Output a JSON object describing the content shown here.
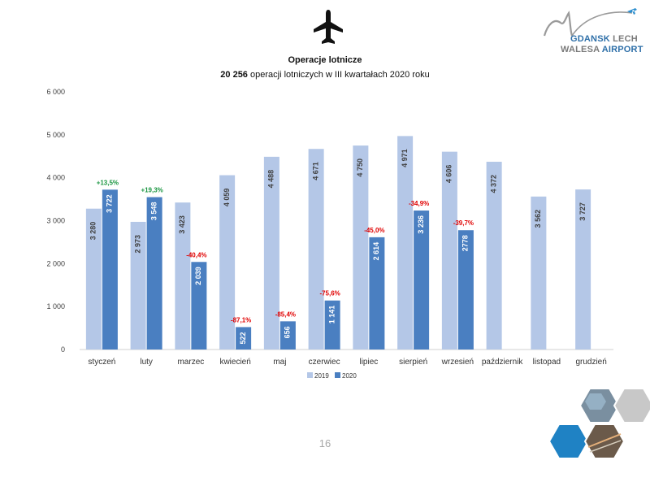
{
  "slide": {
    "title": "Operacje lotnicze",
    "subtitle_count": "20 256",
    "subtitle_rest": "operacji lotniczych w III kwartałach 2020 roku",
    "page_number": "16",
    "icons": [
      "airplane-icon",
      "airport-logo",
      "hexagon-photo-collage"
    ]
  },
  "logo": {
    "line1_a": "GDANSK",
    "line1_b": "LECH",
    "line2_a": "WALESA",
    "line2_b": "AIRPORT"
  },
  "chart_data": {
    "type": "bar",
    "categories": [
      "styczeń",
      "luty",
      "marzec",
      "kwiecień",
      "maj",
      "czerwiec",
      "lipiec",
      "sierpień",
      "wrzesień",
      "październik",
      "listopad",
      "grudzień"
    ],
    "series": [
      {
        "name": "2019",
        "color": "#b4c7e7",
        "values": [
          3280,
          2973,
          3423,
          4059,
          4488,
          4671,
          4750,
          4971,
          4606,
          4372,
          3562,
          3727
        ],
        "labels": [
          "3 280",
          "2 973",
          "3 423",
          "4 059",
          "4 488",
          "4 671",
          "4 750",
          "4 971",
          "4 606",
          "4 372",
          "3 562",
          "3 727"
        ]
      },
      {
        "name": "2020",
        "color": "#4a7fc1",
        "values": [
          3722,
          3548,
          2039,
          522,
          656,
          1141,
          2614,
          3236,
          2778,
          null,
          null,
          null
        ],
        "labels": [
          "3 722",
          "3 548",
          "2 039",
          "522",
          "656",
          "1 141",
          "2 614",
          "3 236",
          "2778",
          "",
          "",
          ""
        ]
      }
    ],
    "changes": [
      "+13,5%",
      "+19,3%",
      "-40,4%",
      "-87,1%",
      "-85,4%",
      "-75,6%",
      "-45,0%",
      "-34,9%",
      "-39,7%",
      "",
      "",
      ""
    ],
    "change_colors": {
      "positive": "#1a9641",
      "negative": "#e00000"
    },
    "ylim": [
      0,
      6000
    ],
    "yticks": [
      0,
      1000,
      2000,
      3000,
      4000,
      5000,
      6000
    ],
    "ytick_labels": [
      "0",
      "1 000",
      "2 000",
      "3 000",
      "4 000",
      "5 000",
      "6 000"
    ],
    "legend_position": "bottom",
    "grid": false
  }
}
